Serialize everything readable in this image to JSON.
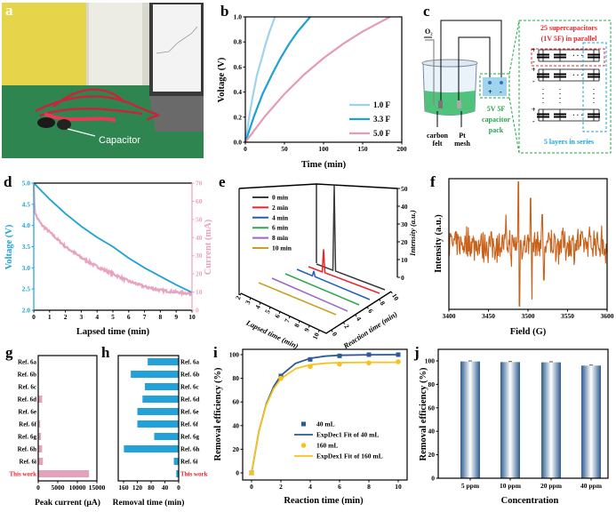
{
  "panel_labels": [
    "a",
    "b",
    "c",
    "d",
    "e",
    "f",
    "g",
    "h",
    "i",
    "j"
  ],
  "panel_a": {
    "annotation": "Capacitor"
  },
  "panel_c": {
    "o2": "O₂",
    "electrode_left": [
      "carbon",
      "felt"
    ],
    "electrode_right": [
      "Pt",
      "mesh"
    ],
    "pack_label": [
      "5V 5F",
      "capacitor",
      "pack"
    ],
    "parallel_label": [
      "25 supercapacitors",
      "(1V 5F) in parallel"
    ],
    "series_label": "5 layers in series",
    "plus": "+",
    "minus": "-",
    "colors": {
      "pack": "#1fa64a",
      "parallel": "#e8262a",
      "series": "#1fa3dc"
    }
  },
  "chart_data": [
    {
      "panel": "b",
      "type": "line",
      "xlabel": "Time (min)",
      "ylabel": "Voltage (V)",
      "xlim": [
        0,
        200
      ],
      "ylim": [
        0,
        1.0
      ],
      "xticks": [
        0,
        50,
        100,
        150,
        200
      ],
      "yticks": [
        0.0,
        0.2,
        0.4,
        0.6,
        0.8,
        1.0
      ],
      "legend": "bottom-right",
      "series": [
        {
          "name": "1.0 F",
          "color": "#9fd3ec",
          "x": [
            0,
            5,
            10,
            15,
            21,
            26,
            31,
            38
          ],
          "y": [
            0,
            0.206,
            0.385,
            0.539,
            0.671,
            0.785,
            0.884,
            1.0
          ]
        },
        {
          "name": "3.3 F",
          "color": "#1f9fd4",
          "x": [
            0,
            11,
            22,
            34,
            45,
            56,
            67,
            83
          ],
          "y": [
            0,
            0.206,
            0.385,
            0.539,
            0.671,
            0.785,
            0.884,
            1.0
          ]
        },
        {
          "name": "5.0 F",
          "color": "#e59ab7",
          "x": [
            0,
            25,
            50,
            75,
            100,
            125,
            150,
            185
          ],
          "y": [
            0,
            0.206,
            0.385,
            0.539,
            0.671,
            0.785,
            0.884,
            1.0
          ]
        }
      ]
    },
    {
      "panel": "d",
      "type": "line",
      "xlabel": "Lapsed time (min)",
      "ylabel_left": "Voltage (V)",
      "ylabel_right": "Current (mA)",
      "xlim": [
        0,
        10
      ],
      "ylim_left": [
        2.0,
        5.0
      ],
      "ylim_right": [
        0,
        70
      ],
      "xticks": [
        0,
        1,
        2,
        3,
        4,
        5,
        6,
        7,
        8,
        9,
        10
      ],
      "yticks_left": [
        2.0,
        2.5,
        3.0,
        3.5,
        4.0,
        4.5,
        5.0
      ],
      "yticks_right": [
        0,
        10,
        20,
        30,
        40,
        50,
        60,
        70
      ],
      "series": [
        {
          "name": "Voltage (V)",
          "axis": "left",
          "color": "#1ea1d6",
          "x": [
            0,
            1,
            2,
            3,
            4,
            5,
            6,
            7,
            8,
            9,
            10
          ],
          "y": [
            5.0,
            4.62,
            4.28,
            3.98,
            3.72,
            3.5,
            3.23,
            3.0,
            2.8,
            2.6,
            2.42
          ]
        },
        {
          "name": "Current (mA)",
          "axis": "right",
          "color": "#e8a3bf",
          "x": [
            0,
            0.05,
            0.2,
            0.5,
            1,
            2,
            3,
            4,
            5,
            6,
            7,
            8,
            9,
            10
          ],
          "y": [
            70,
            55,
            51,
            47,
            43,
            35,
            29,
            24,
            20,
            16,
            13,
            11,
            10,
            9
          ]
        }
      ]
    },
    {
      "panel": "e",
      "type": "line",
      "zlabel": "Intensity (a.u.)",
      "xlabel": "Lapsed time (min)",
      "ylabel": "Reaction time (min)",
      "zlim": [
        0,
        50
      ],
      "zticks": [
        0,
        10,
        20,
        30,
        40,
        50
      ],
      "lapsed_ticks": [
        2,
        3,
        4,
        5,
        6,
        7,
        8,
        9,
        10
      ],
      "reaction_ticks": [
        0,
        2,
        4,
        6,
        8,
        10
      ],
      "legend": "top-left",
      "series": [
        {
          "name": "0 min",
          "color": "#3a3a3a",
          "peak": 48
        },
        {
          "name": "2 min",
          "color": "#e8262a",
          "peak": 13
        },
        {
          "name": "4 min",
          "color": "#1f5fbf",
          "peak": 3
        },
        {
          "name": "6 min",
          "color": "#2aa84a",
          "peak": 0
        },
        {
          "name": "8 min",
          "color": "#9a66c9",
          "peak": 0
        },
        {
          "name": "10 min",
          "color": "#c9a020",
          "peak": 0
        }
      ]
    },
    {
      "panel": "f",
      "type": "line",
      "xlabel": "Field (G)",
      "ylabel": "Intensity (a.u.)",
      "xlim": [
        3400,
        3600
      ],
      "xticks": [
        3400,
        3450,
        3500,
        3550,
        3600
      ],
      "color": "#c8611a",
      "baseline_noise": 0.2,
      "signal_peaks": [
        [
          3472,
          0.45
        ],
        [
          3479,
          -0.35
        ],
        [
          3488,
          0.95
        ],
        [
          3489,
          -0.95
        ],
        [
          3503,
          0.7
        ],
        [
          3505,
          -0.85
        ],
        [
          3518,
          0.45
        ],
        [
          3520,
          -0.55
        ]
      ]
    },
    {
      "panel": "g",
      "type": "bar",
      "orientation": "horizontal",
      "xlabel": "Peak current (μA)",
      "xlim": [
        0,
        15000
      ],
      "xticks": [
        0,
        5000,
        10000,
        15000
      ],
      "color": "#e3a1bb",
      "highlight_color": "#e8262a",
      "categories": [
        "Ref. 6a",
        "Ref. 6b",
        "Ref. 6c",
        "Ref. 6d",
        "Ref. 6e",
        "Ref. 6f",
        "Ref. 6g",
        "Ref. 6h",
        "Ref. 6i",
        "This work"
      ],
      "values": [
        0,
        150,
        0,
        1000,
        0,
        500,
        700,
        1000,
        1200,
        13000
      ]
    },
    {
      "panel": "h",
      "type": "bar",
      "orientation": "horizontal",
      "xlabel": "Removal time (min)",
      "xlim": [
        160,
        0
      ],
      "xticks": [
        160,
        120,
        80,
        40,
        0
      ],
      "color": "#22a2d8",
      "highlight_color": "#e8262a",
      "categories": [
        "Ref. 6a",
        "Ref. 6b",
        "Ref. 6c",
        "Ref. 6d",
        "Ref. 6e",
        "Ref. 6f",
        "Ref. 6g",
        "Ref. 6h",
        "Ref. 6i",
        "This work"
      ],
      "values": [
        90,
        139,
        98,
        105,
        120,
        120,
        71,
        159,
        14,
        7
      ]
    },
    {
      "panel": "i",
      "type": "scatter",
      "xlabel": "Reaction time (min)",
      "ylabel": "Removal efficiency (%)",
      "xlim": [
        0,
        10
      ],
      "ylim": [
        0,
        100
      ],
      "xticks": [
        0,
        2,
        4,
        6,
        8,
        10
      ],
      "yticks": [
        0,
        20,
        40,
        60,
        80,
        100
      ],
      "legend": "center-right",
      "series": [
        {
          "name": "40 mL",
          "marker": "square",
          "color": "#2c5a96",
          "x": [
            0,
            2,
            4,
            6,
            8,
            10
          ],
          "y": [
            0,
            82,
            96,
            99,
            100,
            100
          ]
        },
        {
          "name": "ExpDec1 Fit of 40 mL",
          "type": "line",
          "color": "#2c5a96",
          "x": [
            0,
            0.5,
            1,
            1.5,
            2,
            3,
            4,
            5,
            6,
            8,
            10
          ],
          "y": [
            0,
            35.3,
            58.1,
            72.9,
            82.4,
            92.6,
            96.9,
            98.7,
            99.5,
            99.9,
            100
          ]
        },
        {
          "name": "160 mL",
          "marker": "circle",
          "color": "#f7c21a",
          "x": [
            0,
            2,
            4,
            6,
            8,
            10
          ],
          "y": [
            0,
            80,
            90,
            92,
            93,
            94
          ]
        },
        {
          "name": "ExpDex1 Fit of 160 mL",
          "type": "line",
          "color": "#f7c21a",
          "x": [
            0,
            0.5,
            1,
            1.5,
            2,
            3,
            4,
            5,
            6,
            8,
            10
          ],
          "y": [
            0,
            35.4,
            57.4,
            71.1,
            79.6,
            88.1,
            91.4,
            92.7,
            93.2,
            93.5,
            93.5
          ]
        }
      ]
    },
    {
      "panel": "j",
      "type": "bar",
      "xlabel": "Concentration",
      "ylabel": "Removal efficiency (%)",
      "ylim": [
        0,
        110
      ],
      "yticks": [
        0,
        20,
        40,
        60,
        80,
        100
      ],
      "color": "#2e5c8e",
      "categories": [
        "5 ppm",
        "10 ppm",
        "20 ppm",
        "40 ppm"
      ],
      "values": [
        99.5,
        99.0,
        98.8,
        96.0
      ]
    }
  ]
}
